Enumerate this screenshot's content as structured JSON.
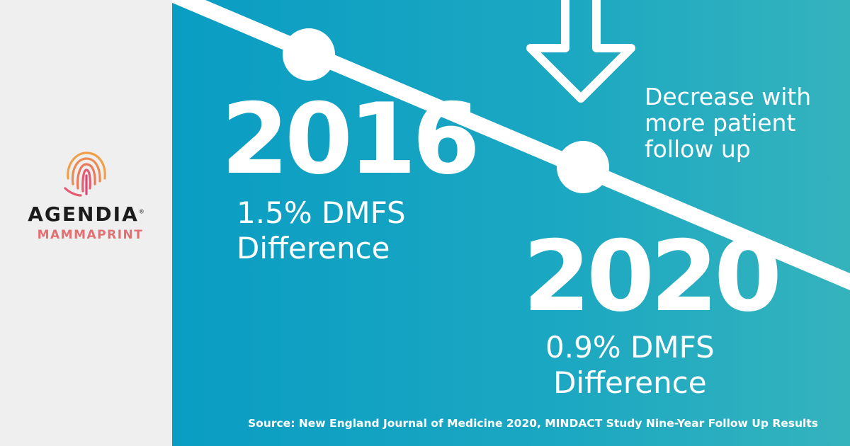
{
  "brand": {
    "name": "AGENDIA",
    "mark": "®",
    "product": "MAMMAPRINT",
    "logo_icon": "fingerprint-icon",
    "logo_colors": [
      "#f0a04a",
      "#ec7a5a",
      "#e45c72",
      "#d94a78"
    ]
  },
  "colors": {
    "panel_start": "#0a9dc3",
    "panel_end": "#35b3bd",
    "sidebar": "#efefef",
    "product_accent": "#e36f73",
    "foreground": "#ffffff"
  },
  "timeline": {
    "points": [
      {
        "year": "2016",
        "stat_line1": "1.5% DMFS",
        "stat_line2": "Difference"
      },
      {
        "year": "2020",
        "stat_line1": "0.9% DMFS",
        "stat_line2": "Difference"
      }
    ]
  },
  "callout": {
    "icon": "down-arrow-icon",
    "line1": "Decrease with",
    "line2": "more patient",
    "line3": "follow up"
  },
  "source": "Source: New England Journal of Medicine 2020, MINDACT Study Nine-Year Follow Up Results"
}
